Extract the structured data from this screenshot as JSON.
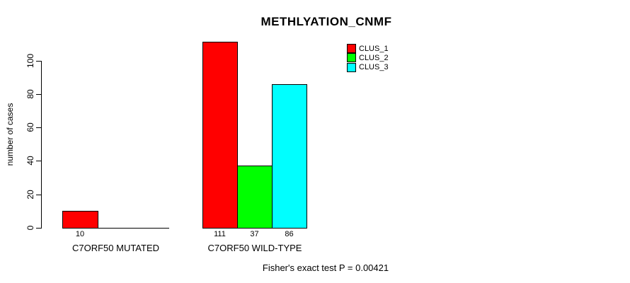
{
  "chart_data": {
    "type": "bar",
    "title": "METHLYATION_CNMF",
    "ylabel": "number of cases",
    "xlabel": "",
    "categories": [
      "C7ORF50 MUTATED",
      "C7ORF50 WILD-TYPE"
    ],
    "series": [
      {
        "name": "CLUS_1",
        "color": "#ff0000",
        "values": [
          10,
          111
        ]
      },
      {
        "name": "CLUS_2",
        "color": "#00ff00",
        "values": [
          0,
          37
        ]
      },
      {
        "name": "CLUS_3",
        "color": "#00ffff",
        "values": [
          0,
          86
        ]
      }
    ],
    "bar_value_labels": [
      [
        "10",
        "111"
      ],
      [
        "",
        "37"
      ],
      [
        "",
        "86"
      ]
    ],
    "yticks": [
      0,
      20,
      40,
      60,
      80,
      100
    ],
    "ylim": [
      0,
      111
    ],
    "grid": false,
    "legend_position": "top-right",
    "annotation": "Fisher's exact test P = 0.00421",
    "colors": {
      "bar_border": "#000000",
      "axis": "#000000",
      "background": "#ffffff",
      "text": "#000000"
    }
  }
}
